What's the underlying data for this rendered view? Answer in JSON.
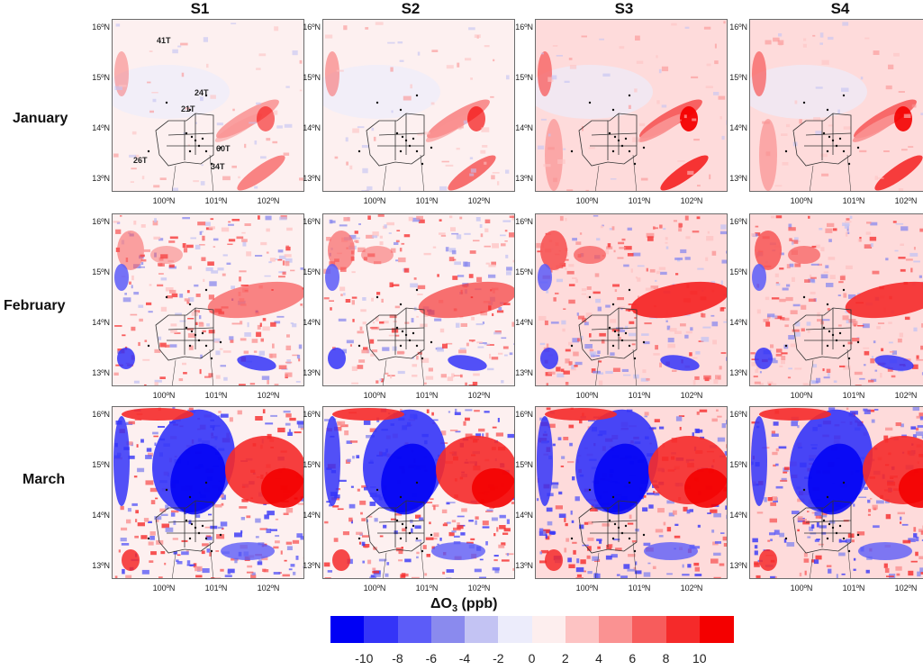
{
  "columns": [
    "S1",
    "S2",
    "S3",
    "S4"
  ],
  "rows": [
    "January",
    "February",
    "March"
  ],
  "lat_labels": [
    "16ºN",
    "15ºN",
    "14ºN",
    "13ºN"
  ],
  "lon_labels": [
    "100ºN",
    "101ºN",
    "102ºN"
  ],
  "station_labels": [
    "41T",
    "24T",
    "21T",
    "60T",
    "34T",
    "26T"
  ],
  "colorbar": {
    "title_main": "ΔO",
    "title_sub": "3",
    "title_unit": " (ppb)",
    "colors": [
      "#0000f5",
      "#3434f8",
      "#5c5cf8",
      "#8a8aee",
      "#c3c3f3",
      "#ececfb",
      "#fdeeee",
      "#fdc3c3",
      "#fa9292",
      "#f75c5c",
      "#f52a2a",
      "#f40000"
    ],
    "ticks": [
      "-10",
      "-8",
      "-6",
      "-4",
      "-2",
      "0",
      "2",
      "4",
      "6",
      "8",
      "10"
    ]
  }
}
